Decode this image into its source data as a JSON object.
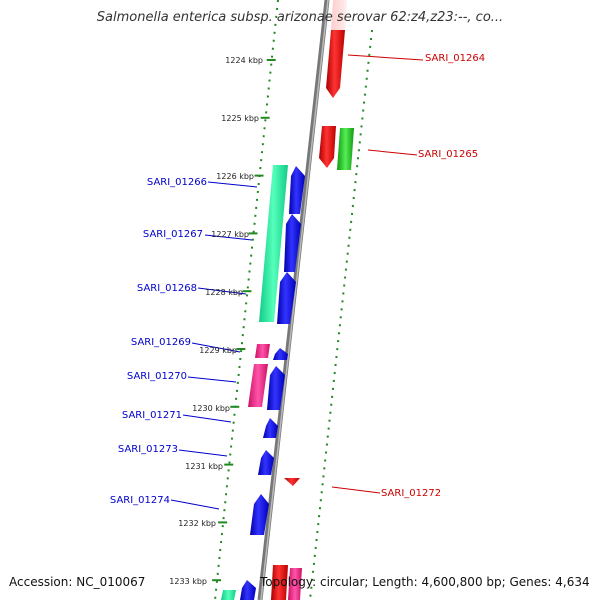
{
  "title": "Salmonella enterica subsp. arizonae serovar 62:z4,z23:--, co...",
  "footer": {
    "accession": "Accession: NC_010067",
    "info": "Topology: circular; Length: 4,600,800 bp; Genes: 4,634"
  },
  "colors": {
    "forward_gene": "#0000ee",
    "reverse_gene": "#ee0000",
    "rrna": "#22dd99",
    "trna": "#ee2288",
    "pseudo": "#22bb22",
    "backbone": "#808080",
    "tick": "#228822",
    "label_left": "#0000cc",
    "label_right": "#cc0000"
  },
  "axis_ticks": [
    {
      "label": "1224 kbp"
    },
    {
      "label": "1225 kbp"
    },
    {
      "label": "1226 kbp"
    },
    {
      "label": "1227 kbp"
    },
    {
      "label": "1228 kbp"
    },
    {
      "label": "1229 kbp"
    },
    {
      "label": "1230 kbp"
    },
    {
      "label": "1231 kbp"
    },
    {
      "label": "1232 kbp"
    },
    {
      "label": "1233 kbp"
    }
  ],
  "gene_labels": [
    {
      "id": "SARI_01264",
      "side": "right"
    },
    {
      "id": "SARI_01265",
      "side": "right"
    },
    {
      "id": "SARI_01266",
      "side": "left"
    },
    {
      "id": "SARI_01267",
      "side": "left"
    },
    {
      "id": "SARI_01268",
      "side": "left"
    },
    {
      "id": "SARI_01269",
      "side": "left"
    },
    {
      "id": "SARI_01270",
      "side": "left"
    },
    {
      "id": "SARI_01271",
      "side": "left"
    },
    {
      "id": "SARI_01273",
      "side": "left"
    },
    {
      "id": "SARI_01272",
      "side": "right"
    },
    {
      "id": "SARI_01274",
      "side": "left"
    }
  ]
}
